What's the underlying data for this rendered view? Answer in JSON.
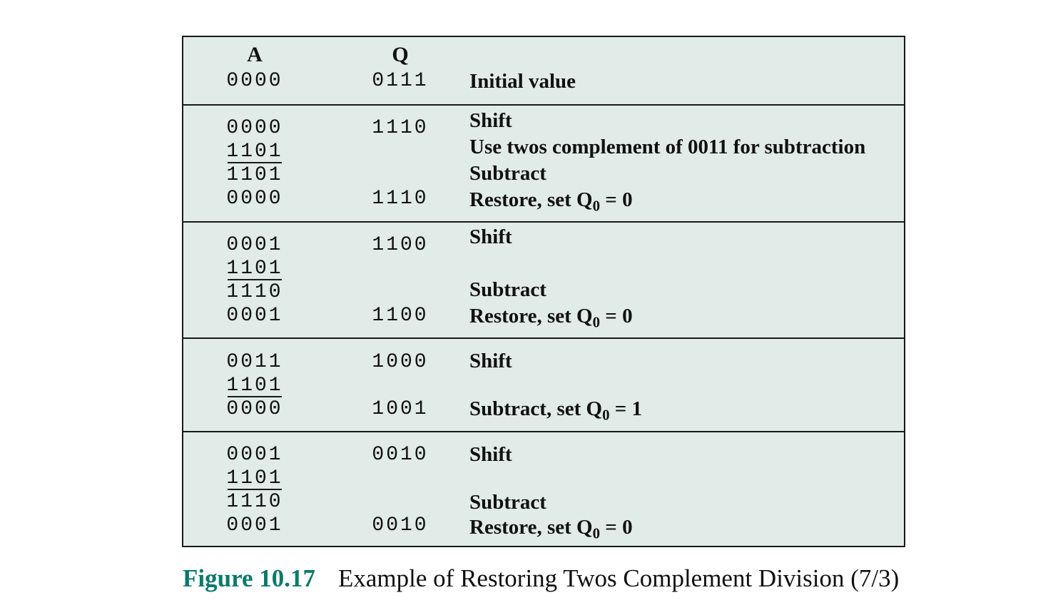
{
  "headers": {
    "a": "A",
    "q": "Q"
  },
  "rows": [
    {
      "a": "0000",
      "q": "0111",
      "desc": "Initial value"
    },
    {
      "a": "0000",
      "q": "1110",
      "desc": "Shift"
    },
    {
      "a": "1101",
      "desc": "Use twos complement of 0011 for subtraction"
    },
    {
      "a": "1101",
      "desc": "Subtract"
    },
    {
      "a": "0000",
      "q": "1110",
      "desc": "Restore, set Q",
      "sub": "0",
      "tail": " = 0"
    },
    {
      "a": "0001",
      "q": "1100",
      "desc": "Shift"
    },
    {
      "a": "1101"
    },
    {
      "a": "1110",
      "desc": "Subtract"
    },
    {
      "a": "0001",
      "q": "1100",
      "desc": "Restore, set Q",
      "sub": "0",
      "tail": " = 0"
    },
    {
      "a": "0011",
      "q": "1000",
      "desc": "Shift"
    },
    {
      "a": "1101"
    },
    {
      "a": "0000",
      "q": "1001",
      "desc": "Subtract, set Q",
      "sub": "0",
      "tail": " = 1"
    },
    {
      "a": "0001",
      "q": "0010",
      "desc": "Shift"
    },
    {
      "a": "1101"
    },
    {
      "a": "1110",
      "desc": "Subtract"
    },
    {
      "a": "0001",
      "q": "0010",
      "desc": "Restore, set Q",
      "sub": "0",
      "tail": " = 0"
    }
  ],
  "caption": {
    "label": "Figure 10.17",
    "text": "Example of Restoring Twos Complement Division (7/3)"
  },
  "colors": {
    "table_bg": "#e1ebe8",
    "caption_label": "#0a7a6d",
    "border": "#1a1a1a"
  }
}
